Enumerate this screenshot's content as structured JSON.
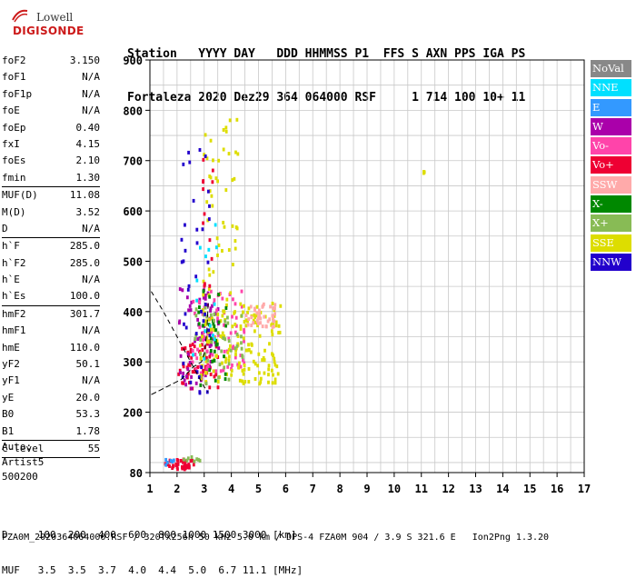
{
  "logo": {
    "top": "Lowell",
    "bottom": "DIGISONDE"
  },
  "header": {
    "labels": "Station   YYYY DAY   DDD HHMMSS P1  FFS S AXN PPS IGA PS",
    "values": "Fortaleza 2020 Dez29 364 064000 RSF     1 714 100 10+ 11"
  },
  "params": [
    {
      "label": "foF2",
      "value": "3.150"
    },
    {
      "label": "foF1",
      "value": "N/A"
    },
    {
      "label": "foF1p",
      "value": "N/A"
    },
    {
      "label": "foE",
      "value": "N/A"
    },
    {
      "label": "foEp",
      "value": "0.40"
    },
    {
      "label": "fxI",
      "value": "4.15"
    },
    {
      "label": "foEs",
      "value": "2.10"
    },
    {
      "label": "fmin",
      "value": "1.30"
    },
    {
      "sep": true
    },
    {
      "label": "MUF(D)",
      "value": "11.08"
    },
    {
      "label": "M(D)",
      "value": "3.52"
    },
    {
      "label": "D",
      "value": "N/A"
    },
    {
      "sep": true
    },
    {
      "label": "h`F",
      "value": "285.0"
    },
    {
      "label": "h`F2",
      "value": "285.0"
    },
    {
      "label": "h`E",
      "value": "N/A"
    },
    {
      "label": "h`Es",
      "value": "100.0"
    },
    {
      "sep": true
    },
    {
      "label": "hmF2",
      "value": "301.7"
    },
    {
      "label": "hmF1",
      "value": "N/A"
    },
    {
      "label": "hmE",
      "value": "110.0"
    },
    {
      "label": "yF2",
      "value": "50.1"
    },
    {
      "label": "yF1",
      "value": "N/A"
    },
    {
      "label": "yE",
      "value": "20.0"
    },
    {
      "label": "B0",
      "value": "53.3"
    },
    {
      "label": "B1",
      "value": "1.78"
    },
    {
      "sep": true
    },
    {
      "label": "C-level",
      "value": "55"
    },
    {
      "sep": true
    }
  ],
  "auto": {
    "line1": "Auto:",
    "line2": "Artist5",
    "line3": "500200"
  },
  "footer": {
    "line1": "D     100  200  400  600  800 1000 1500 3000 [km]",
    "line2": "MUF   3.5  3.5  3.7  4.0  4.4  5.0  6.7 11.1 [MHz]",
    "line3": "FZA0M_2020364064000.RSF / 320fx256h 50 kHz 5.0 km / DPS-4 FZA0M 904 / 3.9 S 321.6 E   Ion2Png 1.3.20"
  },
  "legend": [
    {
      "label": "NoVal",
      "color": "#888888"
    },
    {
      "label": "NNE",
      "color": "#00e0ff"
    },
    {
      "label": "E",
      "color": "#3399ff"
    },
    {
      "label": "W",
      "color": "#aa00aa"
    },
    {
      "label": "Vo-",
      "color": "#ff44aa"
    },
    {
      "label": "Vo+",
      "color": "#ee0033"
    },
    {
      "label": "SSW",
      "color": "#ffaaaa"
    },
    {
      "label": "X-",
      "color": "#008800"
    },
    {
      "label": "X+",
      "color": "#88bb55"
    },
    {
      "label": "SSE",
      "color": "#dddd00"
    },
    {
      "label": "NNW",
      "color": "#2200cc"
    }
  ],
  "chart_data": {
    "type": "scatter",
    "title": "",
    "xlabel": "",
    "ylabel": "",
    "xlim": [
      1,
      17
    ],
    "ylim": [
      80,
      900
    ],
    "x_ticks": [
      "1",
      "2",
      "3",
      "4",
      "5",
      "6",
      "7",
      "8",
      "9",
      "10",
      "11",
      "12",
      "13",
      "14",
      "15",
      "16",
      "17"
    ],
    "y_ticks": [
      "80",
      "200",
      "300",
      "400",
      "500",
      "600",
      "700",
      "800",
      "900"
    ],
    "grid": true,
    "legend_position": "right",
    "echo_clusters": [
      {
        "mode": "Vo+",
        "color": "#ee0033",
        "x_range": [
          1.5,
          2.6
        ],
        "y_range": [
          90,
          110
        ],
        "density": 40
      },
      {
        "mode": "X+",
        "color": "#88bb55",
        "x_range": [
          2.2,
          2.8
        ],
        "y_range": [
          100,
          115
        ],
        "density": 8
      },
      {
        "mode": "E",
        "color": "#3399ff",
        "x_range": [
          1.5,
          2.0
        ],
        "y_range": [
          95,
          110
        ],
        "density": 6
      },
      {
        "mode": "Vo+",
        "color": "#ee0033",
        "x_range": [
          2.0,
          3.5
        ],
        "y_range": [
          250,
          340
        ],
        "density": 60
      },
      {
        "mode": "W",
        "color": "#aa00aa",
        "x_range": [
          2.0,
          3.5
        ],
        "y_range": [
          250,
          450
        ],
        "density": 60
      },
      {
        "mode": "Vo-",
        "color": "#ff44aa",
        "x_range": [
          2.5,
          4.5
        ],
        "y_range": [
          280,
          450
        ],
        "density": 70
      },
      {
        "mode": "SSE",
        "color": "#dddd00",
        "x_range": [
          2.8,
          5.8
        ],
        "y_range": [
          260,
          420
        ],
        "density": 160
      },
      {
        "mode": "SSE",
        "color": "#dddd00",
        "x_range": [
          2.9,
          4.2
        ],
        "y_range": [
          420,
          800
        ],
        "density": 50
      },
      {
        "mode": "X-",
        "color": "#008800",
        "x_range": [
          2.7,
          3.8
        ],
        "y_range": [
          250,
          450
        ],
        "density": 30
      },
      {
        "mode": "X+",
        "color": "#88bb55",
        "x_range": [
          2.6,
          4.5
        ],
        "y_range": [
          260,
          420
        ],
        "density": 40
      },
      {
        "mode": "SSW",
        "color": "#ffaaaa",
        "x_range": [
          4.5,
          5.6
        ],
        "y_range": [
          370,
          420
        ],
        "density": 40
      },
      {
        "mode": "NNW",
        "color": "#2200cc",
        "x_range": [
          2.1,
          3.2
        ],
        "y_range": [
          240,
          740
        ],
        "density": 40
      },
      {
        "mode": "NNE",
        "color": "#00e0ff",
        "x_range": [
          2.5,
          3.5
        ],
        "y_range": [
          300,
          600
        ],
        "density": 14
      },
      {
        "mode": "Vo+",
        "color": "#ee0033",
        "x_range": [
          2.9,
          3.3
        ],
        "y_range": [
          450,
          720
        ],
        "density": 14
      },
      {
        "mode": "SSE",
        "color": "#dddd00",
        "x_range": [
          11.0,
          11.1
        ],
        "y_range": [
          670,
          690
        ],
        "density": 3
      }
    ],
    "trace_curve": {
      "color": "#000000",
      "x": [
        1.05,
        2.15,
        2.6,
        2.9,
        3.02,
        3.1,
        3.15
      ],
      "y": [
        235,
        265,
        290,
        300,
        320,
        360,
        420
      ]
    },
    "dashed_curve": {
      "color": "#000000",
      "x": [
        1.05,
        1.5,
        2.0,
        2.5,
        2.8,
        3.0,
        3.15
      ],
      "y": [
        440,
        400,
        350,
        300,
        270,
        250,
        240
      ]
    }
  }
}
